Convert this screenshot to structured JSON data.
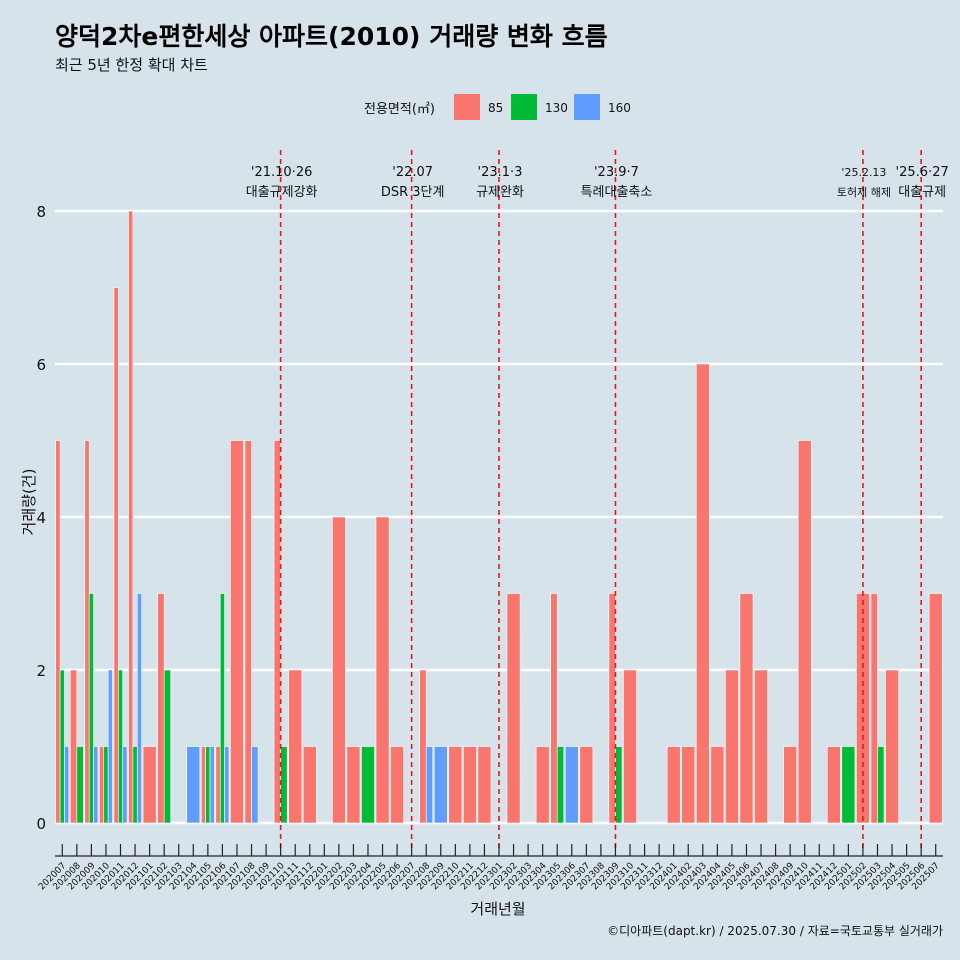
{
  "title": "양덕2차e편한세상 아파트(2010) 거래량 변화 흐름",
  "subtitle": "최근 5년 한정 확대 차트",
  "caption": "©디아파트(dapt.kr) / 2025.07.30 / 자료=국토교통부 실거래가",
  "legend": {
    "title": "전용면적(㎡)",
    "items": [
      {
        "label": "85",
        "color": "#f8766d"
      },
      {
        "label": "130",
        "color": "#00ba38"
      },
      {
        "label": "160",
        "color": "#619cff"
      }
    ]
  },
  "chart_data": {
    "type": "bar",
    "xlabel": "거래년월",
    "ylabel": "거래량(건)",
    "ylim": [
      0,
      8
    ],
    "yticks": [
      0,
      2,
      4,
      6,
      8
    ],
    "grid": true,
    "legend_position": "top",
    "categories": [
      "202007",
      "202008",
      "202009",
      "202010",
      "202011",
      "202012",
      "202101",
      "202102",
      "202103",
      "202104",
      "202105",
      "202106",
      "202107",
      "202108",
      "202109",
      "202110",
      "202111",
      "202112",
      "202201",
      "202202",
      "202203",
      "202204",
      "202205",
      "202206",
      "202207",
      "202208",
      "202209",
      "202210",
      "202211",
      "202212",
      "202301",
      "202302",
      "202303",
      "202304",
      "202305",
      "202306",
      "202307",
      "202308",
      "202309",
      "202310",
      "202311",
      "202312",
      "202401",
      "202402",
      "202403",
      "202404",
      "202405",
      "202406",
      "202407",
      "202408",
      "202409",
      "202410",
      "202411",
      "202412",
      "202501",
      "202502",
      "202503",
      "202504",
      "202505",
      "202506",
      "202507"
    ],
    "series": [
      {
        "name": "85",
        "values": [
          5,
          2,
          5,
          1,
          7,
          8,
          1,
          3,
          0,
          0,
          1,
          1,
          5,
          5,
          0,
          5,
          2,
          1,
          0,
          4,
          1,
          0,
          4,
          1,
          0,
          2,
          0,
          1,
          1,
          1,
          0,
          3,
          0,
          1,
          3,
          0,
          1,
          0,
          3,
          2,
          0,
          0,
          1,
          1,
          6,
          1,
          2,
          3,
          2,
          0,
          1,
          5,
          0,
          1,
          0,
          3,
          3,
          2,
          0,
          0,
          3
        ]
      },
      {
        "name": "130",
        "values": [
          2,
          1,
          3,
          1,
          2,
          1,
          0,
          2,
          0,
          0,
          1,
          3,
          0,
          0,
          0,
          1,
          0,
          0,
          0,
          0,
          0,
          1,
          0,
          0,
          0,
          0,
          0,
          0,
          0,
          0,
          0,
          0,
          0,
          0,
          1,
          0,
          0,
          0,
          1,
          0,
          0,
          0,
          0,
          0,
          0,
          0,
          0,
          0,
          0,
          0,
          0,
          0,
          0,
          0,
          1,
          0,
          1,
          0,
          0,
          0,
          0
        ]
      },
      {
        "name": "160",
        "values": [
          1,
          0,
          1,
          2,
          1,
          3,
          0,
          0,
          0,
          1,
          1,
          1,
          0,
          1,
          0,
          0,
          0,
          0,
          0,
          0,
          0,
          0,
          0,
          0,
          0,
          1,
          1,
          0,
          0,
          0,
          0,
          0,
          0,
          0,
          0,
          1,
          0,
          0,
          0,
          0,
          0,
          0,
          0,
          0,
          0,
          0,
          0,
          0,
          0,
          0,
          0,
          0,
          0,
          0,
          0,
          0,
          0,
          0,
          0,
          0,
          0
        ]
      }
    ],
    "annotations": [
      {
        "month": "202110",
        "date": "'21.10·26",
        "text": "대출규제강화"
      },
      {
        "month": "202207",
        "date": "'22.07",
        "text": "DSR 3단계"
      },
      {
        "month": "202301",
        "date": "'23.1·3",
        "text": "규제완화"
      },
      {
        "month": "202309",
        "date": "'23.9·7",
        "text": "특례대출축소"
      },
      {
        "month": "202502",
        "date": "'25.2.13",
        "text": "토허제 해제"
      },
      {
        "month": "202506",
        "date": "'25.6·27",
        "text": "대출규제"
      }
    ]
  }
}
